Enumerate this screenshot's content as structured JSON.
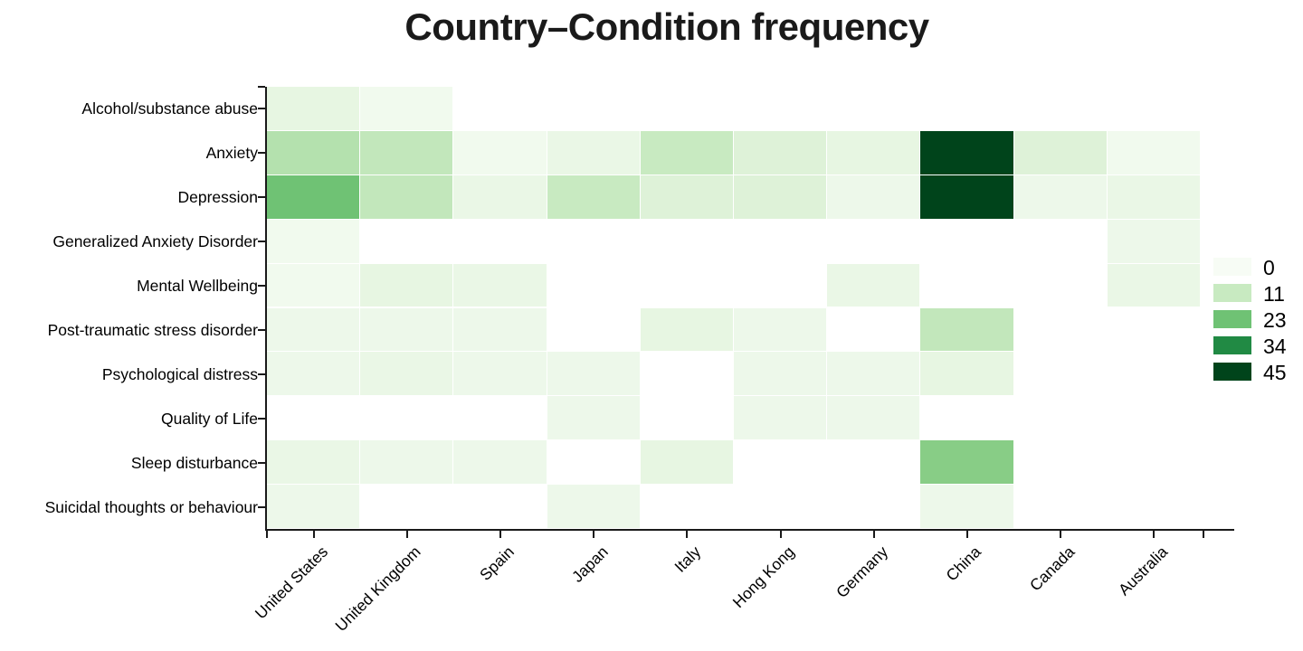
{
  "title": "Country–Condition frequency",
  "chart_data": {
    "type": "heatmap",
    "title": "Country–Condition frequency",
    "x_categories": [
      "United States",
      "United Kingdom",
      "Spain",
      "Japan",
      "Italy",
      "Hong Kong",
      "Germany",
      "China",
      "Canada",
      "Australia"
    ],
    "y_categories": [
      "Alcohol/substance abuse",
      "Anxiety",
      "Depression",
      "Generalized Anxiety Disorder",
      "Mental Wellbeing",
      "Post-traumatic stress disorder",
      "Psychological distress",
      "Quality of Life",
      "Sleep disturbance",
      "Suicidal thoughts or behaviour"
    ],
    "values": [
      [
        5,
        2,
        null,
        null,
        null,
        null,
        null,
        null,
        null,
        null
      ],
      [
        14,
        12,
        2,
        4,
        11,
        7,
        5,
        45,
        7,
        2
      ],
      [
        23,
        12,
        4,
        11,
        7,
        7,
        3,
        45,
        3,
        4
      ],
      [
        2,
        null,
        null,
        null,
        null,
        null,
        null,
        null,
        null,
        3
      ],
      [
        2,
        5,
        4,
        null,
        null,
        null,
        4,
        null,
        null,
        4
      ],
      [
        3,
        3,
        3,
        null,
        5,
        3,
        null,
        12,
        null,
        null
      ],
      [
        3,
        4,
        3,
        3,
        null,
        3,
        3,
        5,
        null,
        null
      ],
      [
        null,
        null,
        null,
        3,
        null,
        3,
        3,
        null,
        null,
        null
      ],
      [
        4,
        3,
        3,
        null,
        5,
        null,
        null,
        20,
        null,
        null
      ],
      [
        3,
        null,
        null,
        3,
        null,
        null,
        null,
        3,
        null,
        null
      ]
    ],
    "value_range": [
      0,
      45
    ],
    "legend_ticks": [
      0,
      11,
      23,
      34,
      45
    ],
    "colormap_name": "greens",
    "colormap_stops": [
      "#f7fcf5",
      "#e5f5e0",
      "#c7e9c0",
      "#a1d99b",
      "#74c476",
      "#41ab5d",
      "#238b45",
      "#006d2c",
      "#00441b"
    ],
    "missing_color": "#ffffff",
    "axis_color": "#1a1a1a",
    "grid": false,
    "legend_position": "right"
  }
}
